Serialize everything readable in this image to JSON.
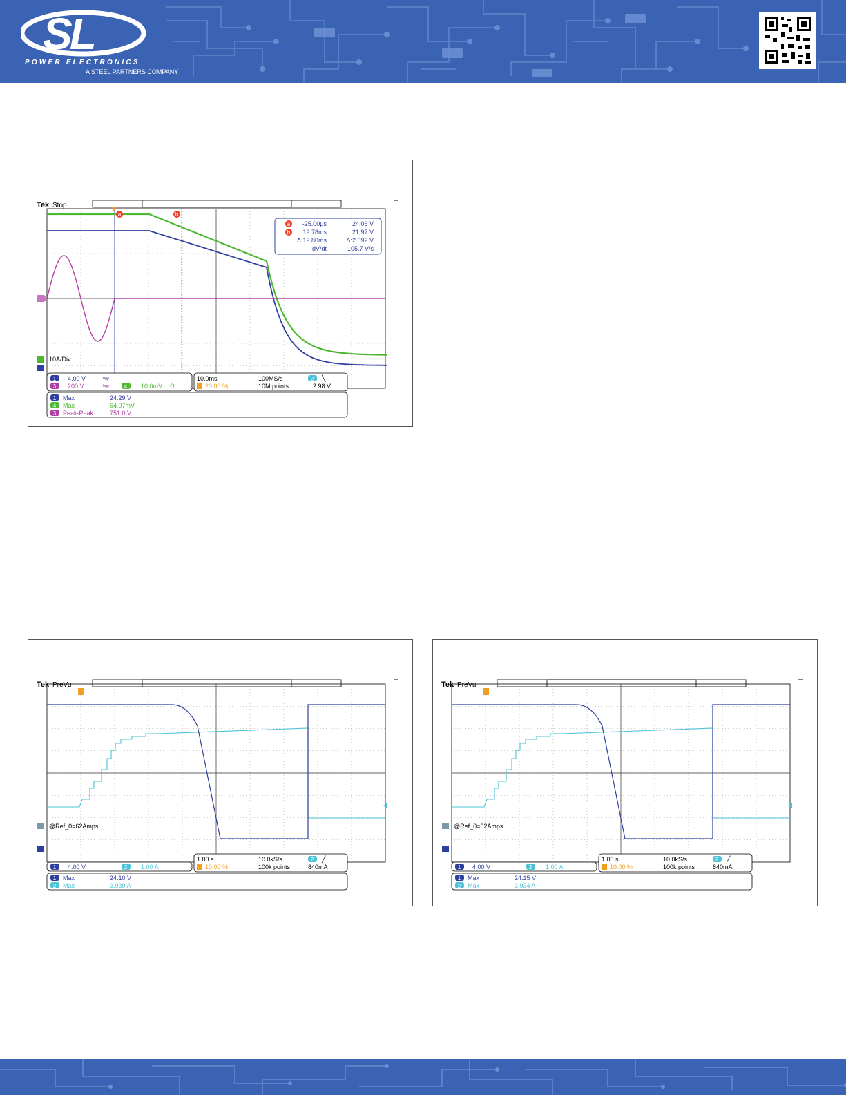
{
  "header": {
    "logo_text": "SL",
    "brand_line": "POWER ELECTRONICS",
    "tagline": "A STEEL PARTNERS COMPANY",
    "qr_icon": "qr-code-icon",
    "color": "#3b63b3"
  },
  "scope1": {
    "brand": "Tek",
    "state": "Stop",
    "cursor_a_time": "-25.00µs",
    "cursor_a_value": "24.06 V",
    "cursor_b_time": "19.78ms",
    "cursor_b_value": "21.97 V",
    "delta_time": "Δ:19.80ms",
    "delta_value": "Δ:2.092 V",
    "dvdt_label": "dV/dt",
    "dvdt_value": "-105.7 V/s",
    "ch4_scale_note": "10A/Div",
    "ch1_scale": "4.00 V",
    "ch3_scale": "200 V",
    "ch4_scale": "10.0mV",
    "ch4_ohm": "Ω",
    "timebase": "10.0ms",
    "sample_rate": "100MS/s",
    "trigger_pos": "20.00 %",
    "record_length": "10M points",
    "trigger_level": "2.98 V",
    "trigger_channel": "2",
    "meas": [
      {
        "ch": "1",
        "label": "Max",
        "value": "24.29 V"
      },
      {
        "ch": "4",
        "label": "Max",
        "value": "64.07mV"
      },
      {
        "ch": "3",
        "label": "Peak-Peak",
        "value": "751.0 V"
      }
    ]
  },
  "scope2": {
    "brand": "Tek",
    "state": "PreVu",
    "ref_label": "@Ref_0=62Amps",
    "ch1_scale": "4.00 V",
    "ch2_scale": "1.00 A",
    "timebase": "1.00 s",
    "sample_rate": "10.0kS/s",
    "trigger_pos": "10.00 %",
    "record_length": "100k points",
    "trigger_level": "840mA",
    "trigger_channel": "2",
    "meas": [
      {
        "ch": "1",
        "label": "Max",
        "value": "24.10 V"
      },
      {
        "ch": "2",
        "label": "Max",
        "value": "3.939 A"
      }
    ]
  },
  "scope3": {
    "brand": "Tek",
    "state": "PreVu",
    "ref_label": "@Ref_0=62Amps",
    "ch1_scale": "4.00 V",
    "ch2_scale": "1.00 A",
    "timebase": "1.00 s",
    "sample_rate": "10.0kS/s",
    "trigger_pos": "10.00 %",
    "record_length": "100k points",
    "trigger_level": "840mA",
    "trigger_channel": "2",
    "meas": [
      {
        "ch": "1",
        "label": "Max",
        "value": "24.15 V"
      },
      {
        "ch": "2",
        "label": "Max",
        "value": "3.934 A"
      }
    ]
  },
  "colors": {
    "ch1": "#2e3f9e",
    "ch2": "#4cc3d6",
    "ch3": "#b23ca5",
    "ch4": "#4fb833",
    "cursor": "#e8402a",
    "trigger": "#f0a020"
  }
}
